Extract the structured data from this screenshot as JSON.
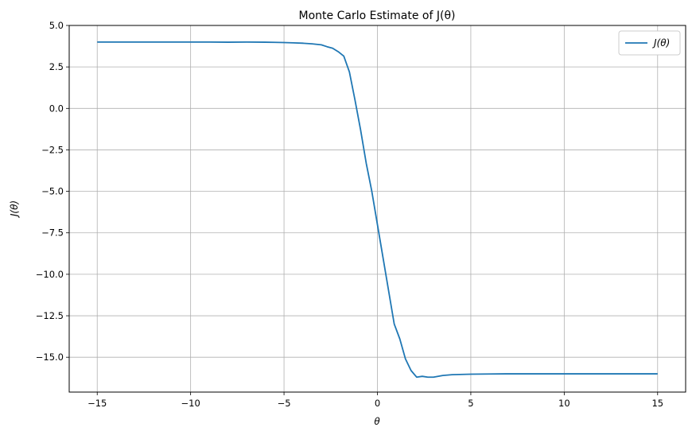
{
  "chart_data": {
    "type": "line",
    "title": "Monte Carlo Estimate of J(θ)",
    "xlabel": "θ",
    "ylabel": "J(θ)",
    "xlim": [
      -16.5,
      16.5
    ],
    "ylim": [
      -17.1,
      5.0
    ],
    "xticks": [
      -15,
      -10,
      -5,
      0,
      5,
      10,
      15
    ],
    "xtick_labels": [
      "−15",
      "−10",
      "−5",
      "0",
      "5",
      "10",
      "15"
    ],
    "yticks": [
      5.0,
      2.5,
      0.0,
      -2.5,
      -5.0,
      -7.5,
      -10.0,
      -12.5,
      -15.0
    ],
    "ytick_labels": [
      "5.0",
      "2.5",
      "0.0",
      "−2.5",
      "−5.0",
      "−7.5",
      "−10.0",
      "−12.5",
      "−15.0"
    ],
    "grid": true,
    "legend_position": "top-right",
    "series": [
      {
        "name": "J(θ)",
        "color": "#1f77b4",
        "x": [
          -15,
          -14,
          -13,
          -12,
          -11,
          -10,
          -9,
          -8,
          -7,
          -6,
          -5.5,
          -5,
          -4.5,
          -4,
          -3.5,
          -3,
          -2.7,
          -2.4,
          -2.1,
          -1.8,
          -1.5,
          -1.2,
          -0.9,
          -0.6,
          -0.3,
          0,
          0.3,
          0.6,
          0.9,
          1.2,
          1.5,
          1.8,
          2.1,
          2.4,
          2.7,
          3,
          3.5,
          4,
          5,
          6,
          7,
          8,
          9,
          10,
          11,
          12,
          13,
          14,
          15
        ],
        "y": [
          4.0,
          4.0,
          4.0,
          4.0,
          4.0,
          4.0,
          4.0,
          3.99,
          4.0,
          3.99,
          3.98,
          3.97,
          3.95,
          3.93,
          3.89,
          3.83,
          3.72,
          3.63,
          3.42,
          3.15,
          2.2,
          0.5,
          -1.3,
          -3.3,
          -5.0,
          -7.0,
          -9.0,
          -11.0,
          -13.0,
          -13.9,
          -15.1,
          -15.8,
          -16.2,
          -16.15,
          -16.2,
          -16.2,
          -16.1,
          -16.05,
          -16.02,
          -16.01,
          -16.0,
          -16.0,
          -16.0,
          -16.0,
          -16.0,
          -16.0,
          -16.0,
          -16.0,
          -16.0
        ]
      }
    ]
  }
}
